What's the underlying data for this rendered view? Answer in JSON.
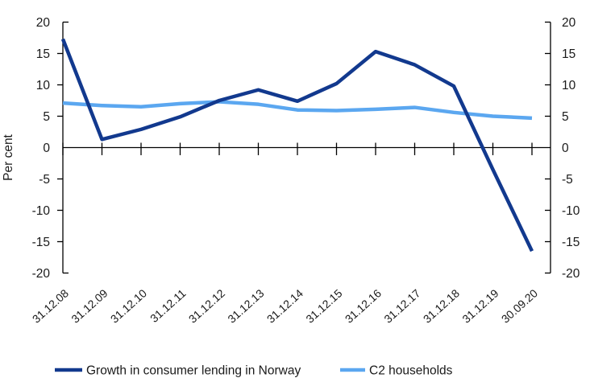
{
  "figure": {
    "background": "#ffffff"
  },
  "chart_data": {
    "type": "line",
    "title": "",
    "ylabel": "Per cent",
    "x_labels": [
      "31.12.08",
      "31.12.09",
      "31.12.10",
      "31.12.11",
      "31.12.12",
      "31.12.13",
      "31.12.14",
      "31.12.15",
      "31.12.16",
      "31.12.17",
      "31.12.18",
      "31.12.19",
      "30.09.20"
    ],
    "y_ticks": [
      20,
      15,
      10,
      5,
      0,
      -5,
      -10,
      -15,
      -20
    ],
    "ylim": [
      -20,
      20
    ],
    "dual_y_axis": true,
    "grid": false,
    "legend_position": "bottom",
    "axis_color": "#000000",
    "text_color": "#1a1a1a",
    "series": [
      {
        "name": "Growth in consumer lending in Norway",
        "color": "#12398E",
        "values": [
          17.3,
          1.3,
          2.9,
          4.9,
          7.5,
          9.2,
          7.4,
          10.2,
          15.3,
          13.2,
          9.8,
          -3.5,
          -16.5
        ]
      },
      {
        "name": "C2 households",
        "color": "#5BA7F0",
        "values": [
          7.1,
          6.7,
          6.5,
          7.0,
          7.3,
          6.9,
          6.0,
          5.9,
          6.1,
          6.4,
          5.6,
          5.0,
          4.7
        ]
      }
    ]
  }
}
